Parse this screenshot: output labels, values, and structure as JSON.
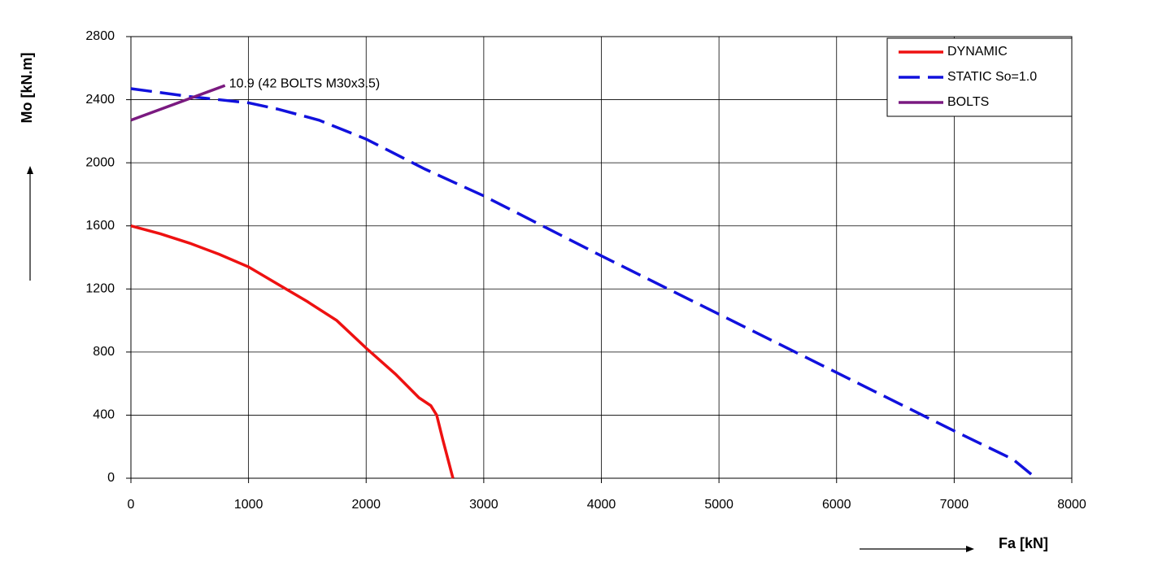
{
  "chart_data": {
    "type": "line",
    "xlabel": "Fa [kN]",
    "ylabel": "Mo [kN.m]",
    "xlim": [
      0,
      8000
    ],
    "xticks": [
      0,
      1000,
      2000,
      3000,
      4000,
      5000,
      6000,
      7000,
      8000
    ],
    "ylim": [
      0,
      2800
    ],
    "yticks": [
      0,
      400,
      800,
      1200,
      1600,
      2000,
      2400,
      2800
    ],
    "grid": true,
    "legend": "top-right",
    "annotation": "10.9 (42 BOLTS M30x3.5)",
    "series": [
      {
        "name": "DYNAMIC",
        "color": "#ee1111",
        "dash": "solid",
        "x": [
          0,
          250,
          500,
          750,
          1000,
          1250,
          1500,
          1750,
          2000,
          2250,
          2450,
          2550,
          2600,
          2650,
          2738
        ],
        "values": [
          1600,
          1550,
          1490,
          1420,
          1340,
          1230,
          1120,
          1000,
          825,
          660,
          510,
          460,
          400,
          250,
          0
        ]
      },
      {
        "name": "STATIC So=1.0",
        "color": "#1111dd",
        "dash": "dashed",
        "x": [
          0,
          500,
          1000,
          1250,
          1600,
          2000,
          2500,
          3000,
          4000,
          5000,
          6000,
          7000,
          7500,
          7680
        ],
        "values": [
          2470,
          2420,
          2380,
          2340,
          2270,
          2150,
          1960,
          1790,
          1410,
          1040,
          670,
          300,
          120,
          10
        ]
      },
      {
        "name": "BOLTS",
        "color": "#7a1a80",
        "dash": "solid",
        "x": [
          0,
          800
        ],
        "values": [
          2270,
          2490
        ]
      }
    ]
  }
}
